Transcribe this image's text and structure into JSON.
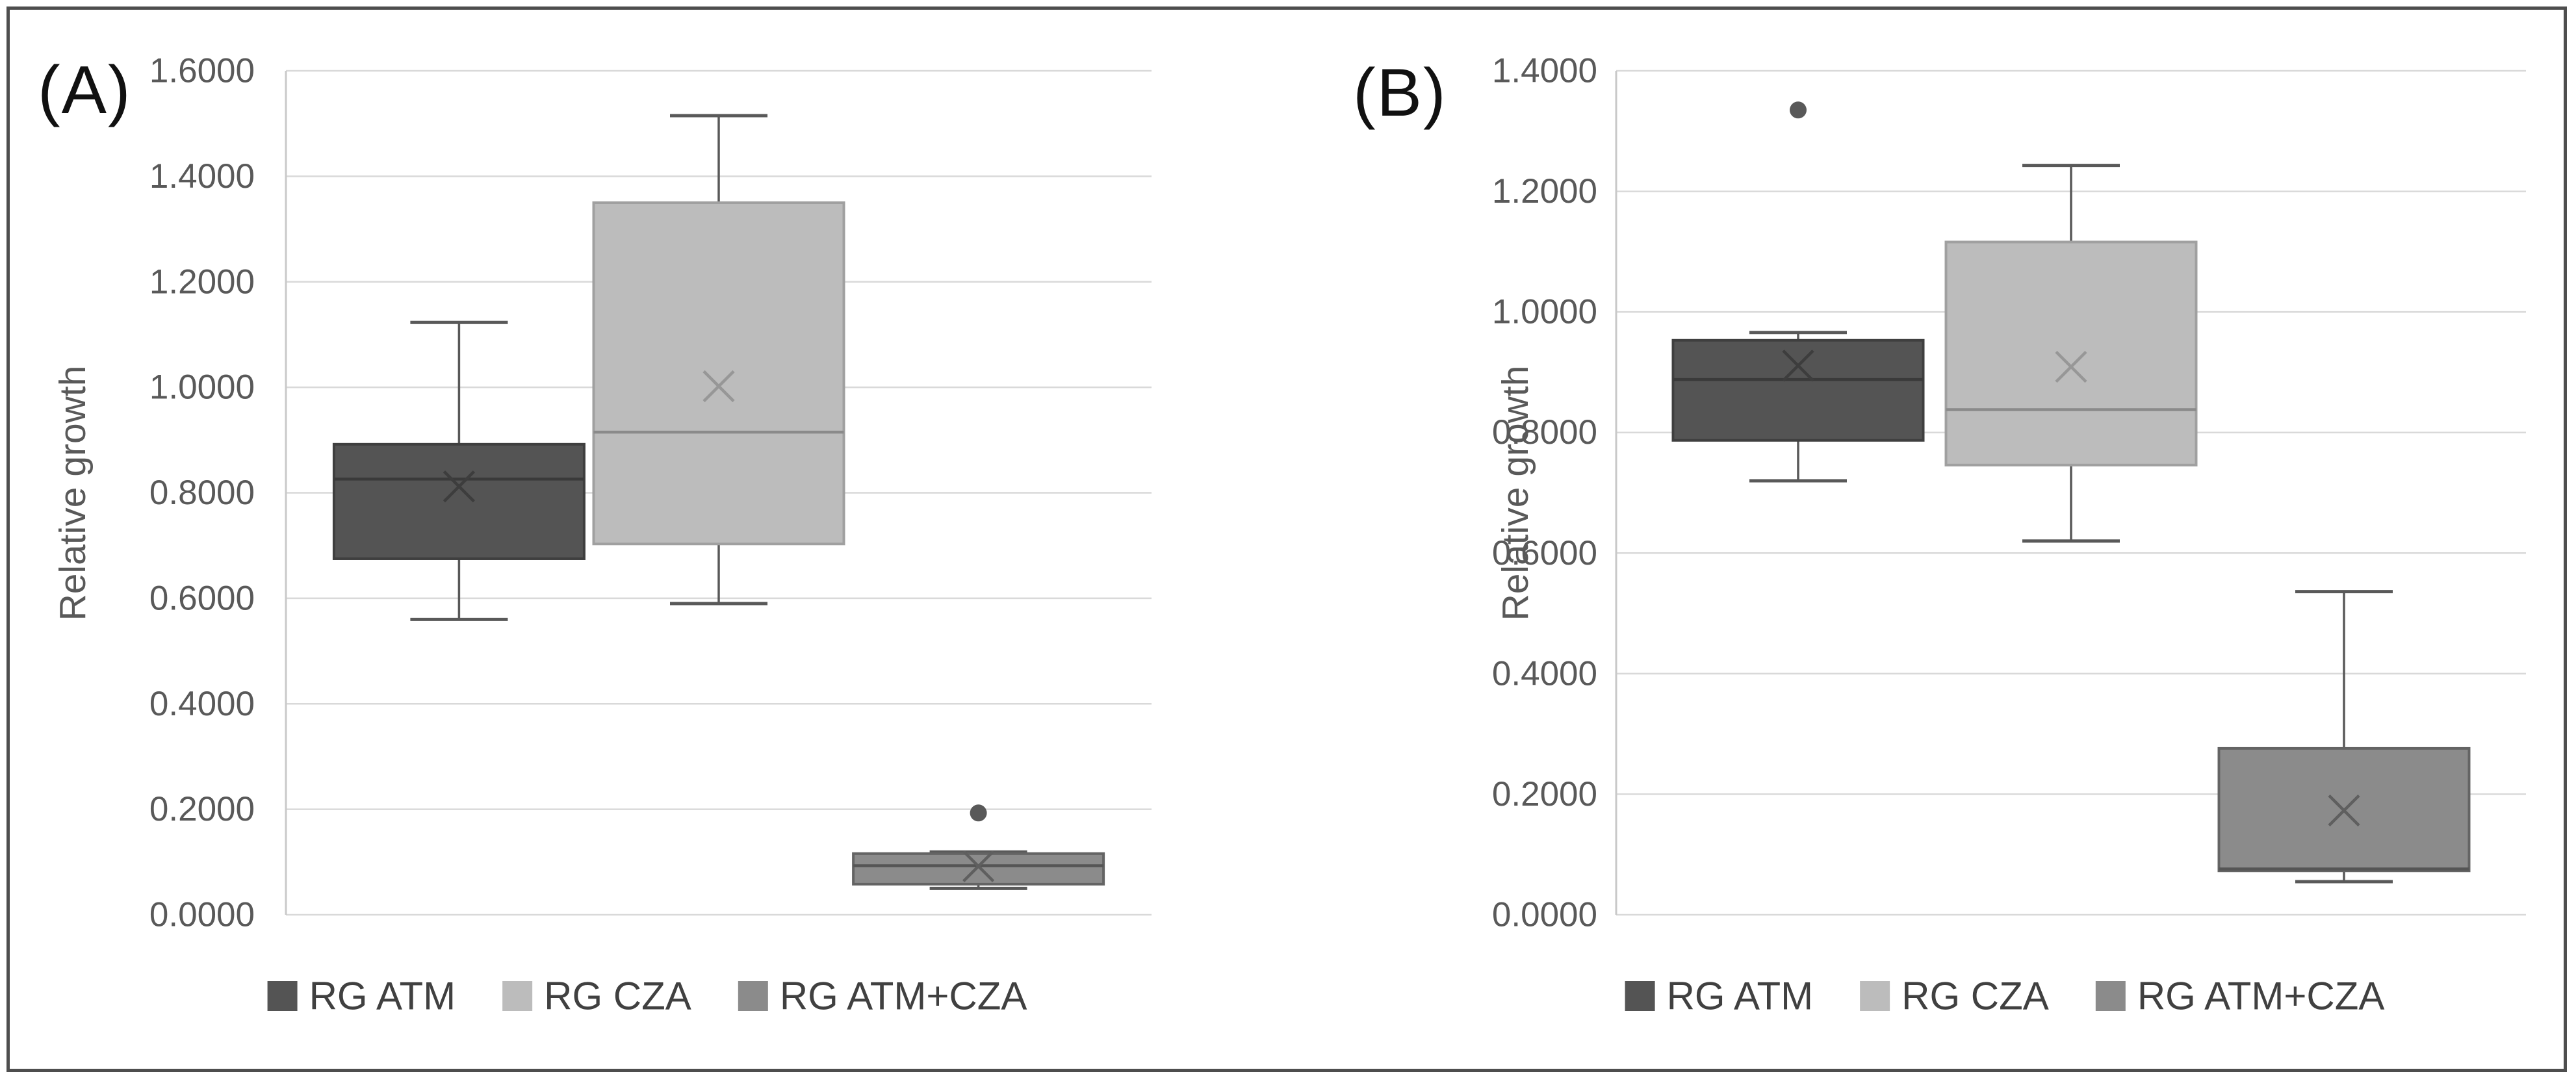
{
  "figure": {
    "y_axis_title": "Relative growth",
    "tick_text_color": "#595959",
    "gridline_color": "#d9d9d9",
    "axis_line_color": "#c9c9c9",
    "whisker_color": "#595959",
    "legend_text_color": "#404040",
    "frame_color": "#4e4e4e"
  },
  "chart_data": [
    {
      "type": "boxplot",
      "panel": "(A)",
      "ylabel": "Relative growth",
      "ylim": [
        0.0,
        1.6
      ],
      "ytick_step": 0.2,
      "ytick_labels": [
        "1.6000",
        "1.4000",
        "1.2000",
        "1.0000",
        "0.8000",
        "0.6000",
        "0.4000",
        "0.2000",
        "0.0000"
      ],
      "grid": true,
      "legend_position": "bottom",
      "legend": [
        "RG ATM",
        "RG CZA",
        "RG ATM+CZA"
      ],
      "series": [
        {
          "name": "RG ATM",
          "fill": "#545454",
          "stroke": "#3f3f3f",
          "median_color": "#3a3a3a",
          "marker_color": "#3d3d3d",
          "whisker_low": 0.56,
          "q1": 0.675,
          "median": 0.826,
          "mean": 0.812,
          "q3": 0.892,
          "whisker_high": 1.123,
          "outliers": []
        },
        {
          "name": "RG CZA",
          "fill": "#bcbcbc",
          "stroke": "#a0a0a0",
          "median_color": "#8a8a8a",
          "marker_color": "#979797",
          "whisker_low": 0.59,
          "q1": 0.703,
          "median": 0.915,
          "mean": 1.002,
          "q3": 1.35,
          "whisker_high": 1.515,
          "outliers": []
        },
        {
          "name": "RG ATM+CZA",
          "fill": "#8b8b8b",
          "stroke": "#646464",
          "median_color": "#555555",
          "marker_color": "#5f5f5f",
          "whisker_low": 0.05,
          "q1": 0.058,
          "median": 0.093,
          "mean": 0.092,
          "q3": 0.116,
          "whisker_high": 0.119,
          "outliers": [
            0.193
          ]
        }
      ]
    },
    {
      "type": "boxplot",
      "panel": "(B)",
      "ylabel": "Relative growth",
      "ylim": [
        0.0,
        1.4
      ],
      "ytick_step": 0.2,
      "ytick_labels": [
        "1.4000",
        "1.2000",
        "1.0000",
        "0.8000",
        "0.6000",
        "0.4000",
        "0.2000",
        "0.0000"
      ],
      "grid": true,
      "legend_position": "bottom",
      "legend": [
        "RG ATM",
        "RG CZA",
        "RG ATM+CZA"
      ],
      "series": [
        {
          "name": "RG ATM",
          "fill": "#545454",
          "stroke": "#3f3f3f",
          "median_color": "#3a3a3a",
          "marker_color": "#3d3d3d",
          "whisker_low": 0.72,
          "q1": 0.787,
          "median": 0.888,
          "mean": 0.911,
          "q3": 0.953,
          "whisker_high": 0.966,
          "outliers": [
            1.335
          ]
        },
        {
          "name": "RG CZA",
          "fill": "#bcbcbc",
          "stroke": "#a0a0a0",
          "median_color": "#8a8a8a",
          "marker_color": "#979797",
          "whisker_low": 0.62,
          "q1": 0.746,
          "median": 0.838,
          "mean": 0.909,
          "q3": 1.116,
          "whisker_high": 1.243,
          "outliers": []
        },
        {
          "name": "RG ATM+CZA",
          "fill": "#8b8b8b",
          "stroke": "#646464",
          "median_color": "#555555",
          "marker_color": "#5f5f5f",
          "whisker_low": 0.055,
          "q1": 0.073,
          "median": 0.076,
          "mean": 0.173,
          "q3": 0.276,
          "whisker_high": 0.536,
          "outliers": []
        }
      ]
    }
  ]
}
